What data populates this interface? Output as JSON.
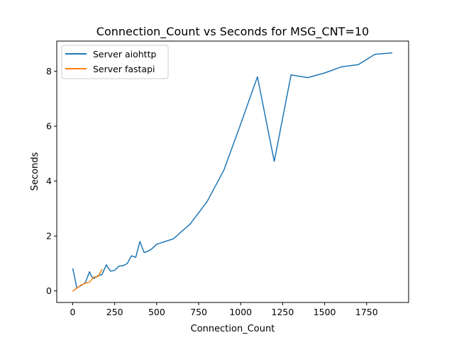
{
  "chart_data": {
    "type": "line",
    "title": "Connection_Count vs Seconds for MSG_CNT=10",
    "xlabel": "Connection_Count",
    "ylabel": "Seconds",
    "xlim": [
      -95,
      2000
    ],
    "ylim": [
      -0.42,
      9.1
    ],
    "xticks": [
      0,
      250,
      500,
      750,
      1000,
      1250,
      1500,
      1750
    ],
    "yticks": [
      0,
      2,
      4,
      6,
      8
    ],
    "grid": false,
    "legend_position": "upper-left",
    "series": [
      {
        "name": "Server aiohttp",
        "color": "#1f77b4",
        "x": [
          1,
          25,
          50,
          75,
          100,
          110,
          125,
          150,
          175,
          200,
          225,
          250,
          275,
          300,
          325,
          350,
          375,
          400,
          425,
          450,
          475,
          500,
          600,
          700,
          800,
          900,
          1000,
          1100,
          1200,
          1300,
          1400,
          1500,
          1600,
          1700,
          1800,
          1900
        ],
        "y": [
          0.8,
          0.1,
          0.2,
          0.3,
          0.7,
          0.55,
          0.45,
          0.55,
          0.6,
          0.95,
          0.72,
          0.75,
          0.9,
          0.92,
          1.0,
          1.28,
          1.22,
          1.8,
          1.4,
          1.45,
          1.55,
          1.7,
          1.9,
          2.44,
          3.25,
          4.4,
          6.07,
          7.8,
          4.72,
          7.87,
          7.77,
          7.94,
          8.16,
          8.24,
          8.62,
          8.67
        ]
      },
      {
        "name": "Server fastapi",
        "color": "#ff7f0e",
        "x": [
          1,
          25,
          50,
          75,
          100,
          125,
          150,
          175
        ],
        "y": [
          0.0,
          0.1,
          0.22,
          0.28,
          0.32,
          0.5,
          0.52,
          0.78
        ]
      }
    ]
  }
}
